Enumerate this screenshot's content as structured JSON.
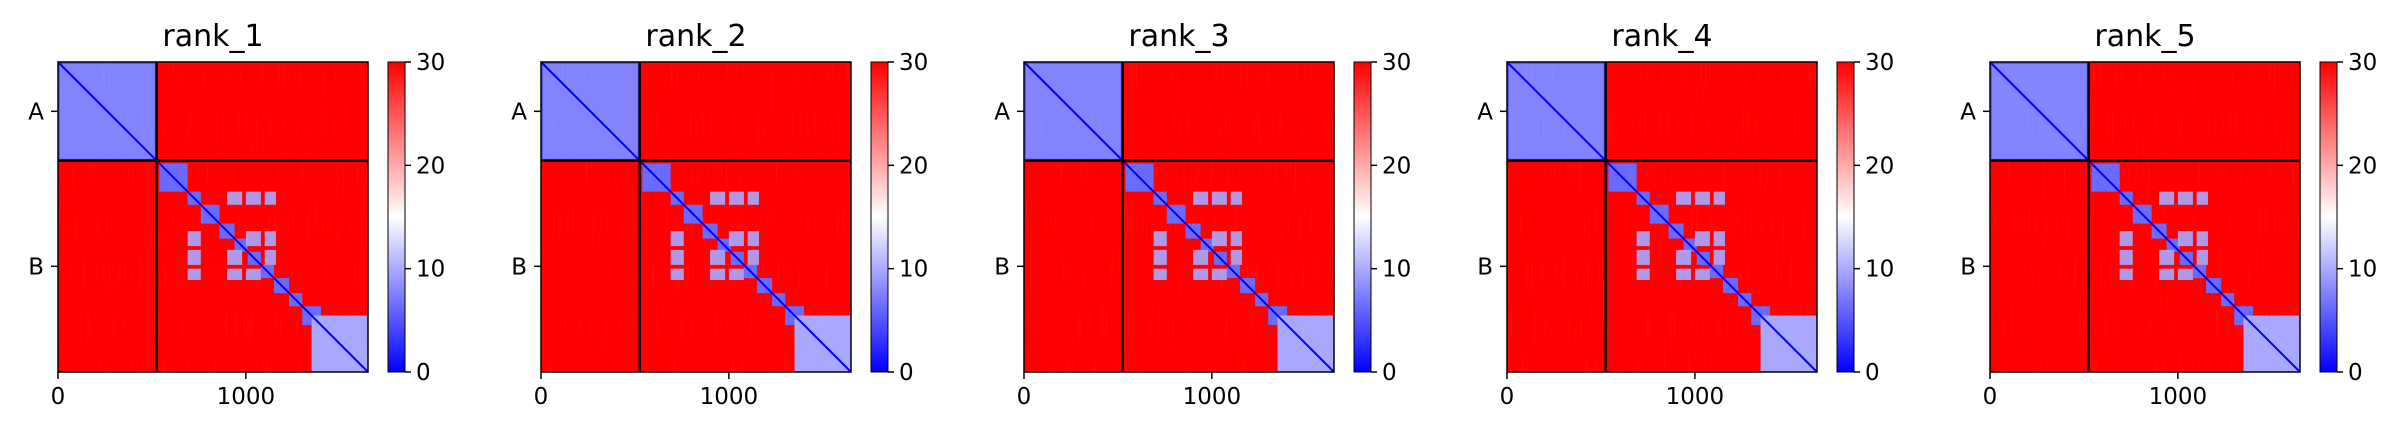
{
  "chart_data": {
    "type": "heatmap",
    "colormap": {
      "name": "bwr",
      "low": "#0000ff",
      "mid": "#ffffff",
      "high": "#ff0000"
    },
    "colorbar": {
      "vmin": 0,
      "vmax": 30,
      "ticks": [
        0,
        10,
        20,
        30
      ]
    },
    "x_ticks": [
      0,
      1000
    ],
    "x_range": [
      0,
      1650
    ],
    "chain_boundary": 525,
    "chains": [
      {
        "label": "A",
        "start": 0,
        "end": 525
      },
      {
        "label": "B",
        "start": 525,
        "end": 1650
      }
    ],
    "panels": [
      {
        "title": "rank_1"
      },
      {
        "title": "rank_2"
      },
      {
        "title": "rank_3"
      },
      {
        "title": "rank_4"
      },
      {
        "title": "rank_5"
      }
    ]
  }
}
